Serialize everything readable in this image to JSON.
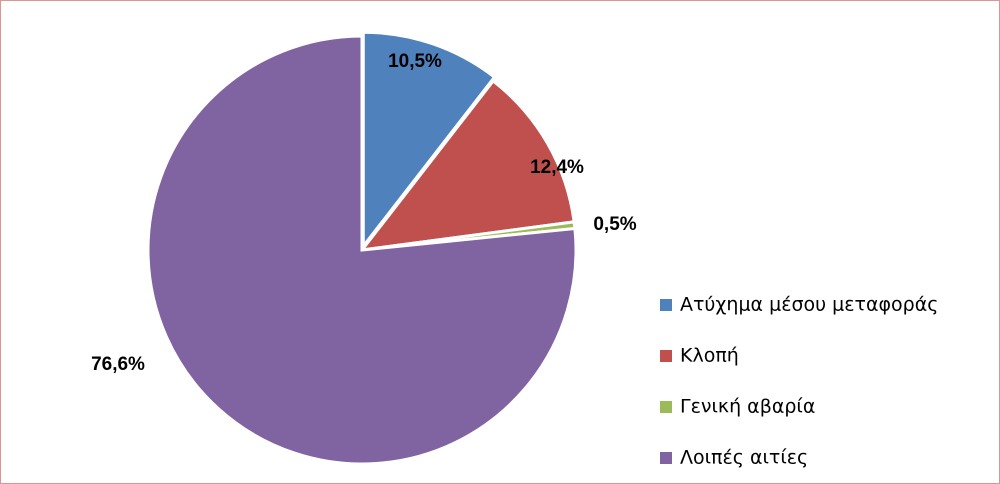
{
  "chart_data": {
    "type": "pie",
    "categories": [
      "Ατύχημα μέσου μεταφοράς",
      "Κλοπή",
      "Γενική αβαρία",
      "Λοιπές αιτίες"
    ],
    "values": [
      10.5,
      12.4,
      0.5,
      76.6
    ],
    "value_labels": [
      "10,5%",
      "12,4%",
      "0,5%",
      "76,6%"
    ],
    "colors": [
      "#4f81bd",
      "#c0504d",
      "#9bbb59",
      "#8064a2"
    ],
    "legend": "right"
  }
}
